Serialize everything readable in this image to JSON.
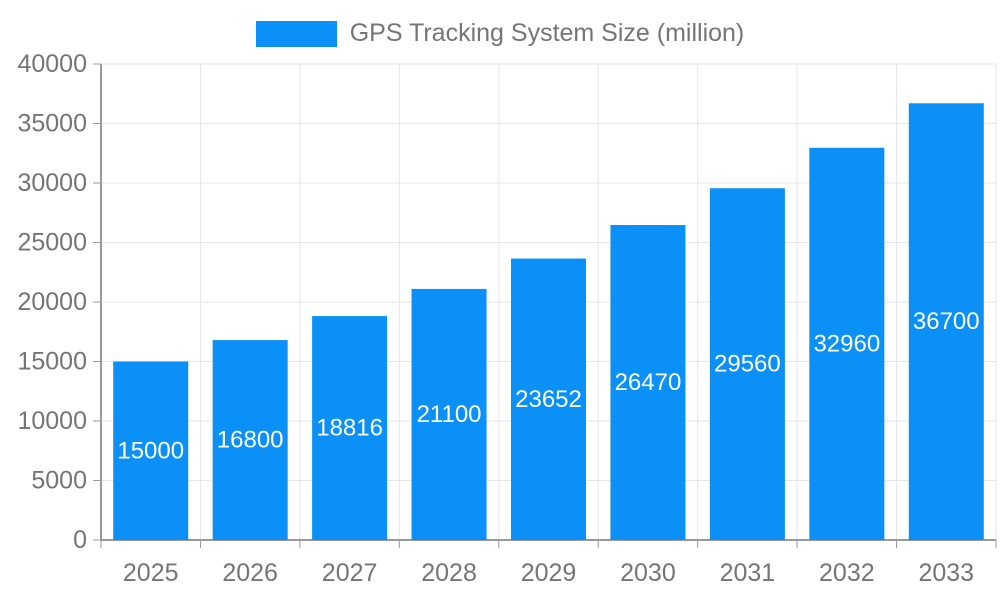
{
  "chart_data": {
    "type": "bar",
    "title": "GPS Tracking System Size (million)",
    "categories": [
      "2025",
      "2026",
      "2027",
      "2028",
      "2029",
      "2030",
      "2031",
      "2032",
      "2033"
    ],
    "values": [
      15000,
      16800,
      18816,
      21100,
      23652,
      26470,
      29560,
      32960,
      36700
    ],
    "xlabel": "",
    "ylabel": "",
    "ylim": [
      0,
      40000
    ],
    "ytick_step": 5000,
    "grid": true,
    "legend_position": "top-center",
    "bar_color": "#0a90f6",
    "bar_label_color": "#ffffff",
    "axis_line_color": "#999999",
    "grid_line_color": "#e6e6e6",
    "tick_color": "#999999",
    "axis_text_color": "#757575"
  },
  "legend": {
    "label": "GPS Tracking System Size (million)"
  }
}
